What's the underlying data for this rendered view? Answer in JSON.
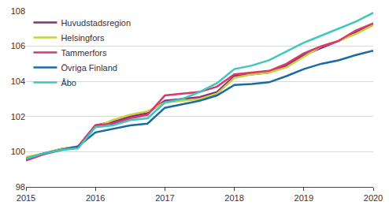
{
  "chart_data": {
    "type": "line",
    "x": [
      2015,
      2015.25,
      2015.5,
      2015.75,
      2016,
      2016.25,
      2016.5,
      2016.75,
      2017,
      2017.25,
      2017.5,
      2017.75,
      2018,
      2018.25,
      2018.5,
      2018.75,
      2019,
      2019.25,
      2019.5,
      2019.75,
      2020
    ],
    "series": [
      {
        "name": "Huvudstadsregion",
        "color": "#8e2a7e",
        "values": [
          99.6,
          99.9,
          100.15,
          100.3,
          101.5,
          101.7,
          102.0,
          102.2,
          102.9,
          103.0,
          103.1,
          103.4,
          104.3,
          104.4,
          104.5,
          104.9,
          105.5,
          105.9,
          106.3,
          106.8,
          107.3
        ]
      },
      {
        "name": "Helsingfors",
        "color": "#c3d33c",
        "values": [
          99.7,
          99.9,
          100.15,
          100.3,
          101.4,
          101.8,
          102.1,
          102.3,
          102.8,
          102.9,
          103.0,
          103.3,
          104.2,
          104.4,
          104.5,
          104.8,
          105.4,
          106.0,
          106.3,
          106.7,
          107.2
        ]
      },
      {
        "name": "Tammerfors",
        "color": "#d9376e",
        "values": [
          99.5,
          99.85,
          100.1,
          100.3,
          101.5,
          101.6,
          101.9,
          102.1,
          103.2,
          103.3,
          103.4,
          103.7,
          104.4,
          104.5,
          104.6,
          105.0,
          105.6,
          106.0,
          106.3,
          106.9,
          107.3
        ]
      },
      {
        "name": "Övriga Finland",
        "color": "#1d6aa0",
        "values": [
          99.6,
          99.9,
          100.1,
          100.3,
          101.1,
          101.3,
          101.5,
          101.6,
          102.5,
          102.7,
          102.9,
          103.2,
          103.8,
          103.85,
          103.95,
          104.3,
          104.7,
          105.0,
          105.2,
          105.5,
          105.75
        ]
      },
      {
        "name": "Åbo",
        "color": "#3cc8c0",
        "values": [
          99.6,
          99.9,
          100.1,
          100.2,
          101.4,
          101.5,
          101.8,
          101.9,
          102.8,
          103.0,
          103.4,
          103.9,
          104.7,
          104.9,
          105.2,
          105.7,
          106.2,
          106.6,
          107.0,
          107.4,
          107.9
        ]
      }
    ],
    "xlim": [
      2015,
      2020
    ],
    "xticks": [
      2015,
      2016,
      2017,
      2018,
      2019,
      2020
    ],
    "ylim": [
      98,
      108
    ],
    "yticks": [
      98,
      100,
      102,
      104,
      106,
      108
    ],
    "grid": true,
    "legend": "top-left"
  }
}
